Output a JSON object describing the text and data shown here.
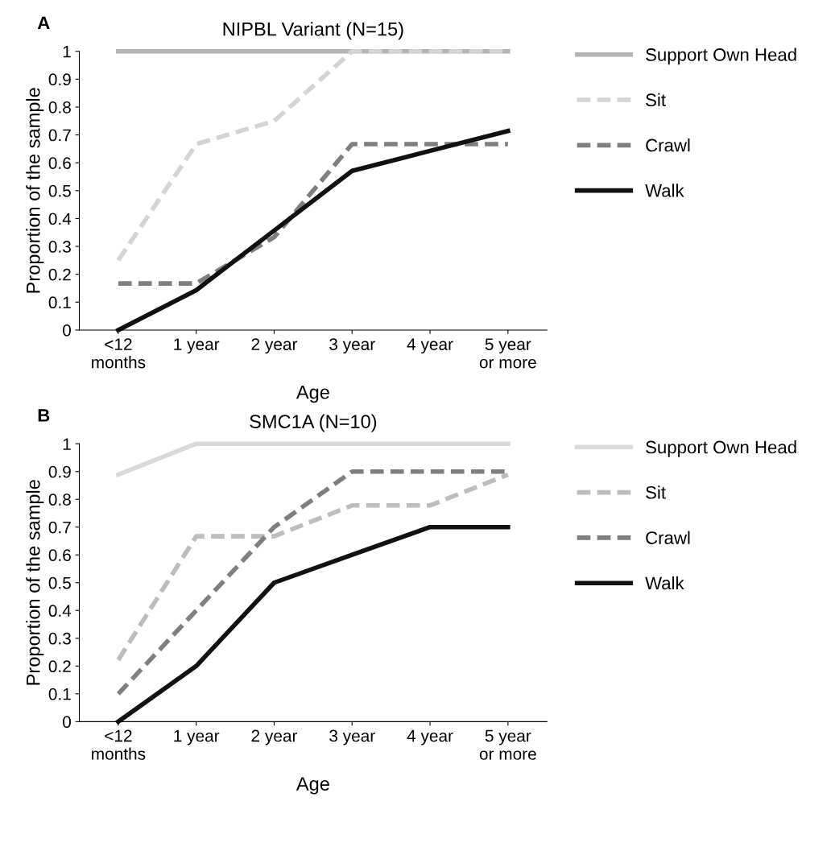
{
  "chart_data": [
    {
      "type": "line",
      "title": "NIPBL Variant (N=15)",
      "xlabel": "Age",
      "ylabel": "Proportion of the sample",
      "annotations": [
        "A"
      ],
      "categories": [
        "<12\nmonths",
        "1 year",
        "2 year",
        "3 year",
        "4 year",
        "5 year\nor more"
      ],
      "ylim": [
        0,
        1
      ],
      "yticks": [
        0,
        0.1,
        0.2,
        0.3,
        0.4,
        0.5,
        0.6,
        0.7,
        0.8,
        0.9,
        1
      ],
      "grid": false,
      "legend": "right",
      "marker": "none",
      "series": [
        {
          "name": "Support Own Head",
          "color": "#b4b4b4",
          "line_style": "solid",
          "values": [
            1,
            1,
            1,
            1,
            1,
            1
          ]
        },
        {
          "name": "Sit",
          "color": "#d4d4d4",
          "line_style": "dashed",
          "values": [
            0.25,
            0.667,
            0.75,
            1,
            1,
            1
          ]
        },
        {
          "name": "Crawl",
          "color": "#7f7f7f",
          "line_style": "dashed",
          "values": [
            0.167,
            0.167,
            0.333,
            0.667,
            0.667,
            0.667
          ]
        },
        {
          "name": "Walk",
          "color": "#111111",
          "line_style": "solid",
          "values": [
            0,
            0.143,
            0.357,
            0.571,
            0.643,
            0.714
          ]
        }
      ]
    },
    {
      "type": "line",
      "title": "SMC1A (N=10)",
      "xlabel": "Age",
      "ylabel": "Proportion of the sample",
      "annotations": [
        "B"
      ],
      "categories": [
        "<12\nmonths",
        "1 year",
        "2 year",
        "3 year",
        "4 year",
        "5 year\nor more"
      ],
      "ylim": [
        0,
        1
      ],
      "yticks": [
        0,
        0.1,
        0.2,
        0.3,
        0.4,
        0.5,
        0.6,
        0.7,
        0.8,
        0.9,
        1
      ],
      "grid": false,
      "legend": "right",
      "marker": "none",
      "series": [
        {
          "name": "Support Own Head",
          "color": "#d9d9d9",
          "line_style": "solid",
          "values": [
            0.889,
            1,
            1,
            1,
            1,
            1
          ]
        },
        {
          "name": "Sit",
          "color": "#bdbdbd",
          "line_style": "dashed",
          "values": [
            0.222,
            0.667,
            0.667,
            0.778,
            0.778,
            0.889
          ]
        },
        {
          "name": "Crawl",
          "color": "#7f7f7f",
          "line_style": "dashed",
          "values": [
            0.1,
            0.4,
            0.7,
            0.9,
            0.9,
            0.9
          ]
        },
        {
          "name": "Walk",
          "color": "#111111",
          "line_style": "solid",
          "values": [
            0,
            0.2,
            0.5,
            0.6,
            0.7,
            0.7
          ]
        }
      ]
    }
  ]
}
